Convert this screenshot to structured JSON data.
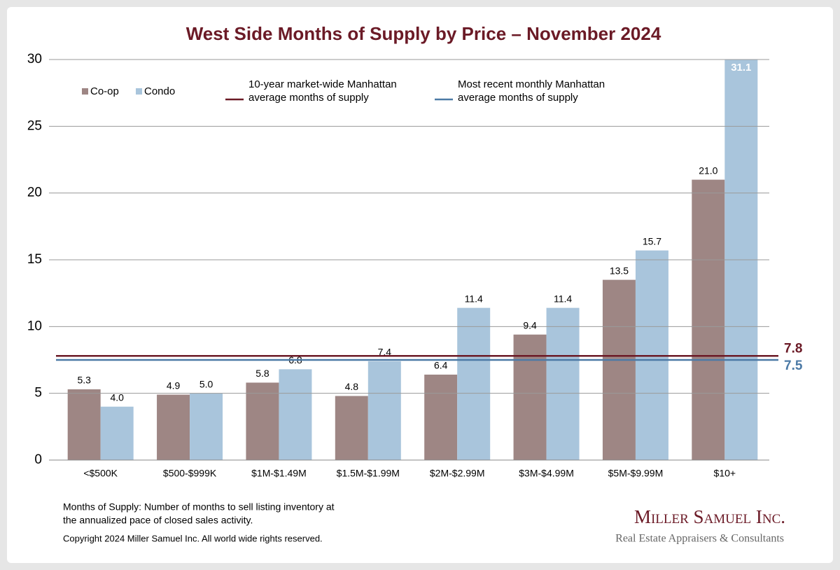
{
  "chart_data": {
    "type": "bar",
    "title": "West Side Months of Supply by Price – November 2024",
    "categories": [
      "<$500K",
      "$500-$999K",
      "$1M-$1.49M",
      "$1.5M-$1.99M",
      "$2M-$2.99M",
      "$3M-$4.99M",
      "$5M-$9.99M",
      "$10+"
    ],
    "series": [
      {
        "name": "Co-op",
        "color": "#9e8684",
        "values": [
          5.3,
          4.9,
          5.8,
          4.8,
          6.4,
          9.4,
          13.5,
          21.0
        ],
        "value_labels": [
          "5.3",
          "4.9",
          "5.8",
          "4.8",
          "6.4",
          "9.4",
          "13.5",
          "21.0"
        ]
      },
      {
        "name": "Condo",
        "color": "#a9c5dc",
        "values": [
          4.0,
          5.0,
          6.8,
          7.4,
          11.4,
          11.4,
          15.7,
          31.1
        ],
        "value_labels": [
          "4.0",
          "5.0",
          "6.8",
          "7.4",
          "11.4",
          "11.4",
          "15.7",
          "31.1"
        ]
      }
    ],
    "reference_lines": [
      {
        "name_lines": [
          "10-year market-wide Manhattan",
          "average months of supply"
        ],
        "value": 7.8,
        "color": "#6b1a26"
      },
      {
        "name_lines": [
          "Most recent monthly Manhattan",
          "average months of supply"
        ],
        "value": 7.5,
        "color": "#4c7aa6"
      }
    ],
    "ylim": [
      0,
      30
    ],
    "yticks": [
      0,
      5,
      10,
      15,
      20,
      25,
      30
    ],
    "grid": true,
    "footnotes": [
      "Months of Supply: Number of months to sell listing inventory at",
      "the annualized pace of closed sales activity.",
      "Copyright 2024 Miller Samuel Inc.  All world wide rights reserved."
    ],
    "logo": {
      "name": "Miller Samuel Inc.",
      "tagline": "Real Estate Appraisers & Consultants"
    }
  }
}
